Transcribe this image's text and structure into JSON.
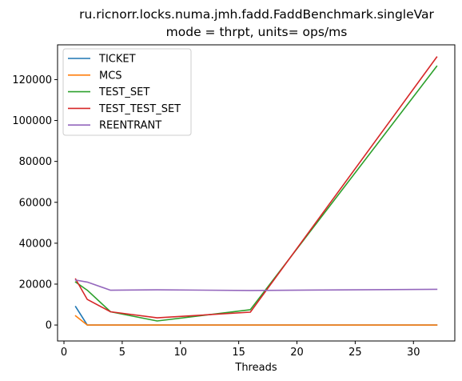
{
  "chart_data": {
    "type": "line",
    "title": "ru.ricnorr.locks.numa.jmh.fadd.FaddBenchmark.singleVar",
    "subtitle": "mode = thrpt, units= ops/ms",
    "xlabel": "Threads",
    "ylabel": "",
    "xlim": [
      -0.55,
      33.55
    ],
    "ylim": [
      -7800,
      137000
    ],
    "xticks": [
      0,
      5,
      10,
      15,
      20,
      25,
      30
    ],
    "yticks": [
      0,
      20000,
      40000,
      60000,
      80000,
      100000,
      120000
    ],
    "legend_position": "upper-left",
    "grid": false,
    "series": [
      {
        "name": "TICKET",
        "color": "#1f77b4",
        "x": [
          1,
          2,
          4,
          8,
          16,
          32
        ],
        "values": [
          9000,
          0,
          0,
          0,
          0,
          0
        ]
      },
      {
        "name": "MCS",
        "color": "#ff7f0e",
        "x": [
          1,
          2,
          4,
          8,
          16,
          32
        ],
        "values": [
          4500,
          0,
          0,
          0,
          0,
          0
        ]
      },
      {
        "name": "TEST_SET",
        "color": "#2ca02c",
        "x": [
          1,
          2,
          4,
          8,
          16,
          32
        ],
        "values": [
          21000,
          17000,
          6500,
          2000,
          7500,
          126500
        ]
      },
      {
        "name": "TEST_TEST_SET",
        "color": "#d62728",
        "x": [
          1,
          2,
          4,
          8,
          16,
          32
        ],
        "values": [
          22500,
          12500,
          6500,
          3500,
          6300,
          131000
        ]
      },
      {
        "name": "REENTRANT",
        "color": "#9467bd",
        "x": [
          1,
          2,
          4,
          8,
          16,
          32
        ],
        "values": [
          22000,
          21000,
          17000,
          17200,
          16900,
          17500
        ]
      }
    ]
  }
}
